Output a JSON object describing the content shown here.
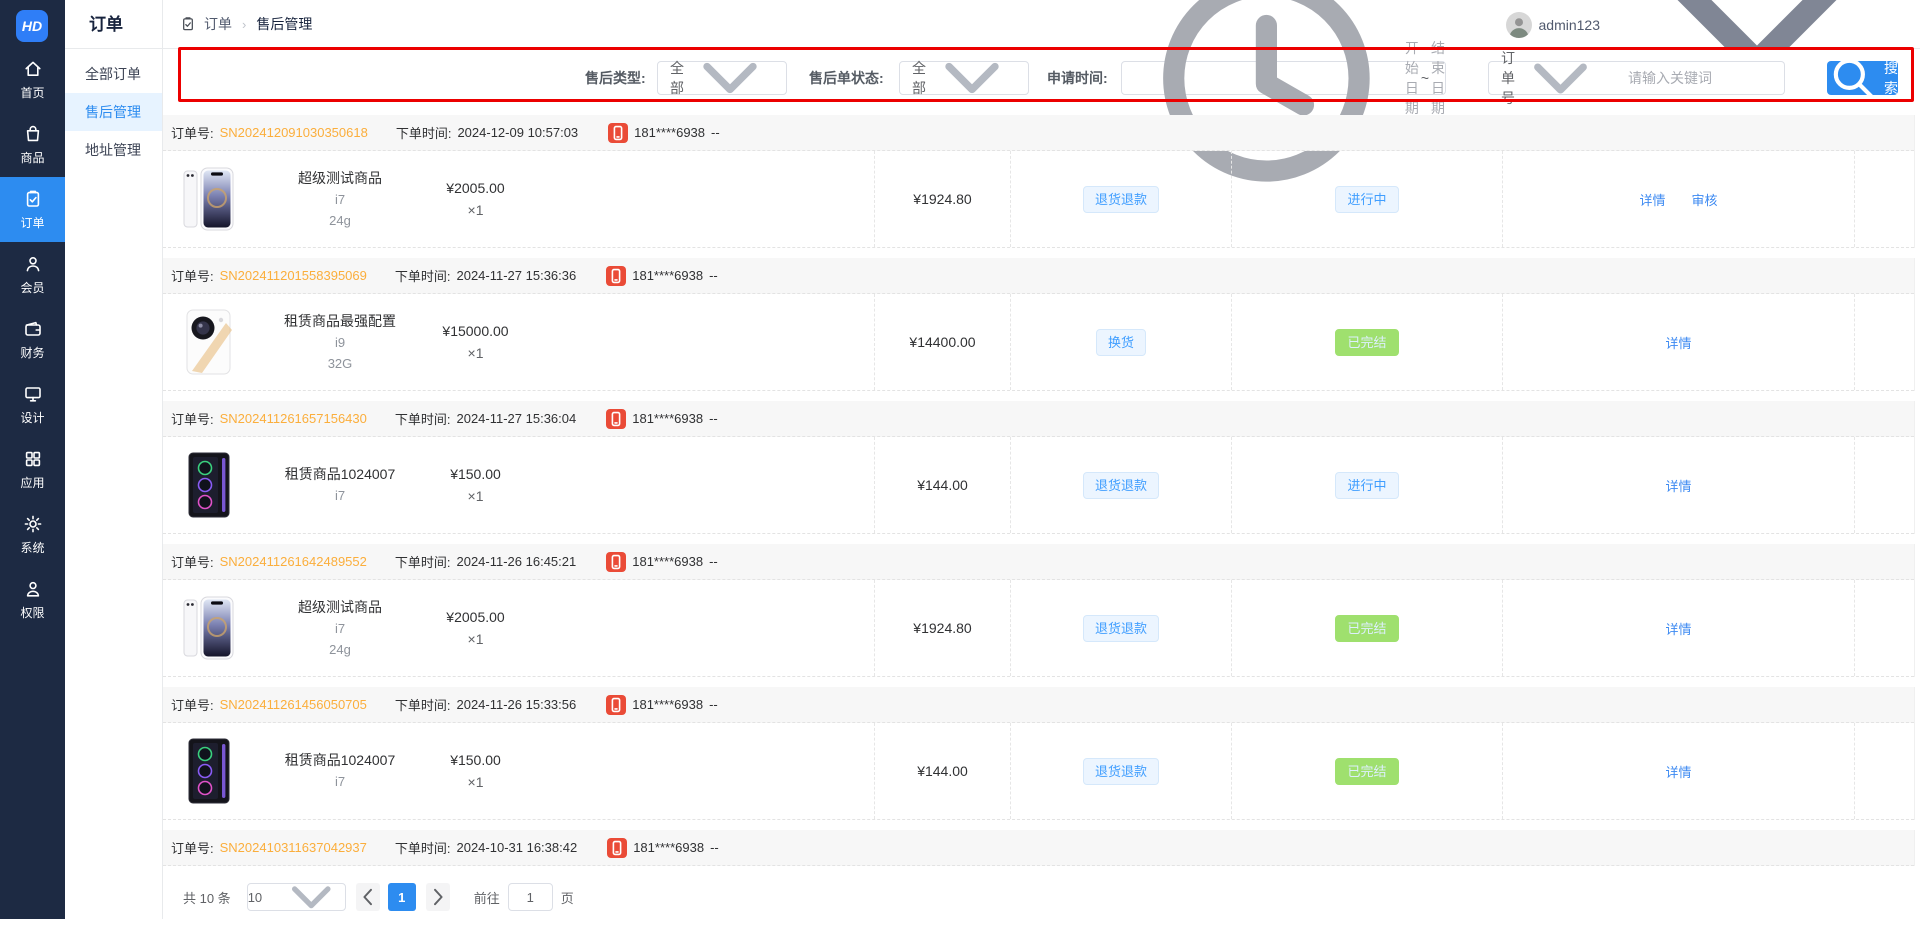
{
  "colors": {
    "accent_blue": "#2d8cf0",
    "link_blue": "#3d8af2",
    "order_no_orange": "#fbae3c",
    "badge_blue_bg": "#ecf5ff",
    "badge_blue_text": "#409eff",
    "status_green_bg": "#9fe06e",
    "phone_icon_red": "#ea4b37",
    "sidebar_navy": "#1d2a43",
    "highlight_red": "#ec0000"
  },
  "sidebar": {
    "logo_text": "HD",
    "items": [
      {
        "key": "home",
        "icon": "home-icon",
        "label": "首页",
        "active": false
      },
      {
        "key": "goods",
        "icon": "bag-icon",
        "label": "商品",
        "active": false
      },
      {
        "key": "orders",
        "icon": "order-icon",
        "label": "订单",
        "active": true
      },
      {
        "key": "members",
        "icon": "member-icon",
        "label": "会员",
        "active": false
      },
      {
        "key": "finance",
        "icon": "finance-icon",
        "label": "财务",
        "active": false
      },
      {
        "key": "design",
        "icon": "design-icon",
        "label": "设计",
        "active": false
      },
      {
        "key": "apps",
        "icon": "apps-icon",
        "label": "应用",
        "active": false
      },
      {
        "key": "system",
        "icon": "system-icon",
        "label": "系统",
        "active": false
      },
      {
        "key": "permission",
        "icon": "permission-icon",
        "label": "权限",
        "active": false
      }
    ]
  },
  "submenu": {
    "title": "订单",
    "items": [
      {
        "key": "all-orders",
        "label": "全部订单",
        "active": false
      },
      {
        "key": "aftersale",
        "label": "售后管理",
        "active": true
      },
      {
        "key": "address",
        "label": "地址管理",
        "active": false
      }
    ]
  },
  "topbar": {
    "breadcrumb": {
      "icon": "order-icon",
      "root": "订单",
      "separator": "›",
      "current": "售后管理"
    },
    "user": {
      "name": "admin123"
    }
  },
  "filters": {
    "type_label": "售后类型:",
    "type_value": "全部",
    "status_label": "售后单状态:",
    "status_value": "全部",
    "time_label": "申请时间:",
    "start_placeholder": "开始日期",
    "range_separator": "~",
    "end_placeholder": "结束日期",
    "keyword_field": "订单号",
    "keyword_placeholder": "请输入关键词",
    "search_label": "搜索"
  },
  "orders": [
    {
      "order_no_label": "订单号:",
      "order_no": "SN202412091030350618",
      "time_label": "下单时间:",
      "time": "2024-12-09 10:57:03",
      "phone": "181****6938",
      "dash": "--",
      "product": {
        "image": "iphone",
        "name": "超级测试商品",
        "specs": [
          "i7",
          "24g"
        ],
        "price": "¥2005.00",
        "qty": "×1"
      },
      "amount": "¥1924.80",
      "type": "退货退款",
      "status": "进行中",
      "status_kind": "processing",
      "actions": [
        "详情",
        "审核"
      ]
    },
    {
      "order_no_label": "订单号:",
      "order_no": "SN202411201558395069",
      "time_label": "下单时间:",
      "time": "2024-11-27 15:36:36",
      "phone": "181****6938",
      "dash": "--",
      "product": {
        "image": "camera",
        "name": "租赁商品最强配置",
        "specs": [
          "i9",
          "32G"
        ],
        "price": "¥15000.00",
        "qty": "×1"
      },
      "amount": "¥14400.00",
      "type": "换货",
      "status": "已完结",
      "status_kind": "done",
      "actions": [
        "详情"
      ]
    },
    {
      "order_no_label": "订单号:",
      "order_no": "SN202411261657156430",
      "time_label": "下单时间:",
      "time": "2024-11-27 15:36:04",
      "phone": "181****6938",
      "dash": "--",
      "product": {
        "image": "tower",
        "name": "租赁商品1024007",
        "specs": [
          "i7"
        ],
        "price": "¥150.00",
        "qty": "×1"
      },
      "amount": "¥144.00",
      "type": "退货退款",
      "status": "进行中",
      "status_kind": "processing",
      "actions": [
        "详情"
      ]
    },
    {
      "order_no_label": "订单号:",
      "order_no": "SN202411261642489552",
      "time_label": "下单时间:",
      "time": "2024-11-26 16:45:21",
      "phone": "181****6938",
      "dash": "--",
      "product": {
        "image": "iphone",
        "name": "超级测试商品",
        "specs": [
          "i7",
          "24g"
        ],
        "price": "¥2005.00",
        "qty": "×1"
      },
      "amount": "¥1924.80",
      "type": "退货退款",
      "status": "已完结",
      "status_kind": "done",
      "actions": [
        "详情"
      ]
    },
    {
      "order_no_label": "订单号:",
      "order_no": "SN202411261456050705",
      "time_label": "下单时间:",
      "time": "2024-11-26 15:33:56",
      "phone": "181****6938",
      "dash": "--",
      "product": {
        "image": "tower",
        "name": "租赁商品1024007",
        "specs": [
          "i7"
        ],
        "price": "¥150.00",
        "qty": "×1"
      },
      "amount": "¥144.00",
      "type": "退货退款",
      "status": "已完结",
      "status_kind": "done",
      "actions": [
        "详情"
      ]
    },
    {
      "order_no_label": "订单号:",
      "order_no": "SN202410311637042937",
      "time_label": "下单时间:",
      "time": "2024-10-31 16:38:42",
      "phone": "181****6938",
      "dash": "--",
      "product": null
    }
  ],
  "pagination": {
    "total": "共 10 条",
    "page_size": "10",
    "page": "1",
    "goto_label": "前往",
    "goto_value": "1",
    "page_label": "页"
  }
}
